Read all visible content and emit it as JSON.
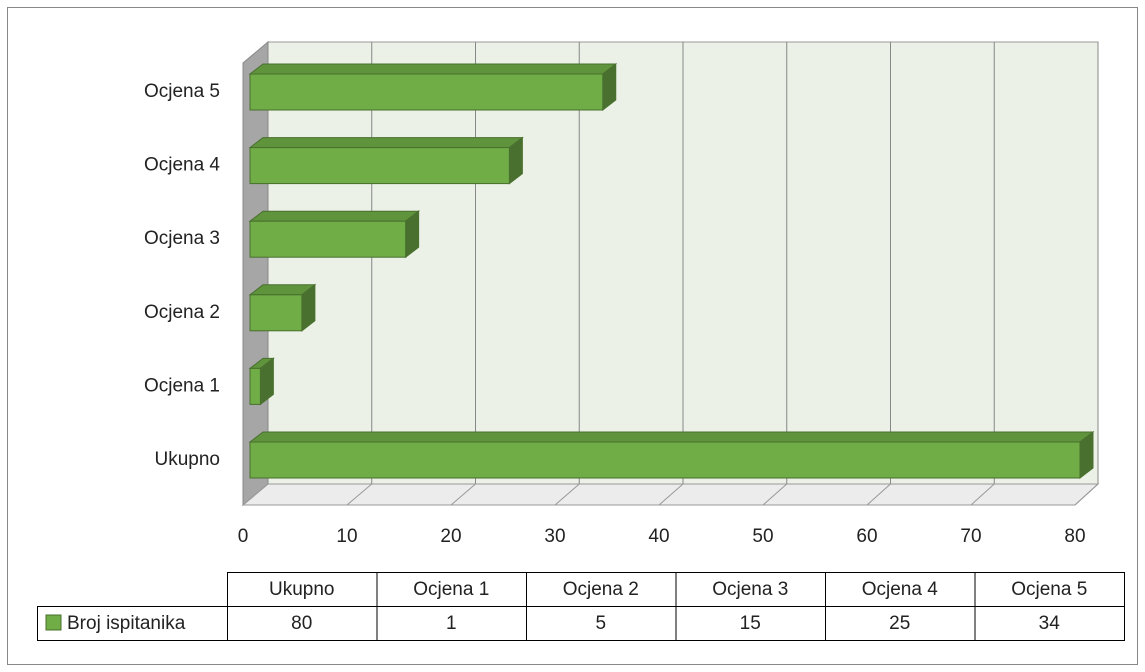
{
  "chart_data": {
    "type": "bar",
    "orientation": "horizontal",
    "three_d": true,
    "categories": [
      "Ukupno",
      "Ocjena 1",
      "Ocjena 2",
      "Ocjena 3",
      "Ocjena 4",
      "Ocjena 5"
    ],
    "series": [
      {
        "name": "Broj ispitanika",
        "color": "#70ad47",
        "values": [
          80,
          1,
          5,
          15,
          25,
          34
        ]
      }
    ],
    "xlim": [
      0,
      80
    ],
    "xticks": [
      0,
      10,
      20,
      30,
      40,
      50,
      60,
      70,
      80
    ],
    "grid": true,
    "data_table": true
  }
}
